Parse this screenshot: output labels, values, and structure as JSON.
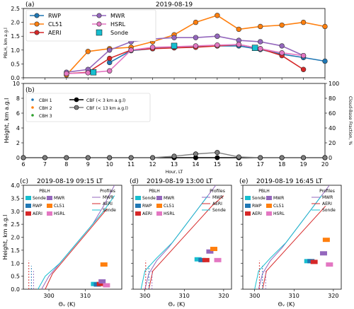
{
  "chart_data": [
    {
      "type": "line",
      "panel_tag": "(a)",
      "title": "2019-08-19",
      "ylabel": "PBLH, km a.g.l",
      "xlim": [
        6,
        20
      ],
      "ylim": [
        0,
        2.5
      ],
      "yticks": [
        0.0,
        0.5,
        1.0,
        1.5,
        2.0,
        2.5
      ],
      "legend_position": "top-left",
      "series": [
        {
          "name": "RWP",
          "color": "#1f77b4",
          "marker": "circle",
          "x": [
            10,
            11,
            12,
            13,
            14,
            15,
            16,
            17,
            18,
            19,
            20
          ],
          "y": [
            0.55,
            0.98,
            1.05,
            1.12,
            1.13,
            1.15,
            1.15,
            1.02,
            0.85,
            0.73,
            0.6
          ]
        },
        {
          "name": "CL51",
          "color": "#ff7f0e",
          "marker": "circle",
          "x": [
            8,
            9,
            10,
            11,
            12,
            13,
            14,
            15,
            16,
            17,
            18,
            19,
            20
          ],
          "y": [
            0.1,
            0.95,
            1.05,
            1.1,
            1.3,
            1.55,
            2.0,
            2.25,
            1.75,
            1.85,
            1.9,
            2.0,
            1.85
          ]
        },
        {
          "name": "AERI",
          "color": "#d62728",
          "marker": "circle",
          "x": [
            8,
            9,
            10,
            11,
            12,
            13,
            14,
            15,
            16,
            17,
            18,
            19
          ],
          "y": [
            0.15,
            0.2,
            0.7,
            1.0,
            1.05,
            1.08,
            1.1,
            1.15,
            1.2,
            1.05,
            0.8,
            0.3
          ]
        },
        {
          "name": "MWR",
          "color": "#9467bd",
          "marker": "circle",
          "x": [
            8,
            9,
            10,
            11,
            12,
            13,
            14,
            15,
            16,
            17,
            18,
            19
          ],
          "y": [
            0.2,
            0.3,
            1.0,
            1.3,
            1.4,
            1.45,
            1.45,
            1.5,
            1.35,
            1.3,
            1.15,
            0.8
          ]
        },
        {
          "name": "HSRL",
          "color": "#e377c2",
          "marker": "circle",
          "x": [
            8,
            9,
            10,
            11,
            12,
            13,
            14,
            15,
            16,
            17,
            18,
            19
          ],
          "y": [
            0.15,
            0.18,
            0.25,
            1.0,
            1.1,
            1.12,
            1.15,
            1.18,
            1.2,
            1.05,
            0.9,
            0.8
          ]
        },
        {
          "name": "Sonde",
          "color": "#17becf",
          "marker": "square",
          "x": [
            9.25,
            13,
            16.75
          ],
          "y": [
            0.2,
            1.15,
            1.08
          ]
        }
      ]
    },
    {
      "type": "line",
      "panel_tag": "(b)",
      "xlabel": "Hour, LT",
      "ylabel": "Height, km a.g.l",
      "y2label": "Cloud-Base Fraction, %",
      "xlim": [
        6,
        20
      ],
      "xticks": [
        6,
        7,
        8,
        9,
        10,
        11,
        12,
        13,
        14,
        15,
        16,
        17,
        18,
        19,
        20
      ],
      "ylim": [
        0,
        10
      ],
      "yticks": [
        0,
        2,
        4,
        6,
        8,
        10
      ],
      "y2lim": [
        0,
        100
      ],
      "y2ticks": [
        0,
        20,
        40,
        60,
        80,
        100
      ],
      "legend_position": "top-left",
      "cbh_legend": [
        {
          "name": "CBH 1",
          "color": "#1f77b4"
        },
        {
          "name": "CBH 2",
          "color": "#ff7f0e"
        },
        {
          "name": "CBH 3",
          "color": "#2ca02c"
        }
      ],
      "series": [
        {
          "name": "CBF (< 3 km a.g.l)",
          "color": "#000000",
          "x": [
            6,
            7,
            8,
            9,
            10,
            11,
            12,
            13,
            14,
            15,
            16,
            17,
            18,
            19,
            20
          ],
          "y2": [
            0,
            0,
            0,
            0,
            0,
            0,
            0,
            0,
            0,
            0,
            0,
            0,
            0,
            0,
            0
          ]
        },
        {
          "name": "CBF (< 13 km a.g.l)",
          "color": "#808080",
          "x": [
            6,
            7,
            8,
            9,
            10,
            11,
            12,
            13,
            14,
            15,
            16,
            17,
            18,
            19,
            20
          ],
          "y2": [
            0,
            0,
            0,
            0,
            0,
            0,
            0,
            2,
            5,
            7,
            1,
            0,
            0,
            0,
            0
          ]
        }
      ]
    },
    {
      "type": "line",
      "panel_tag": "(c)",
      "title": "2019-08-19 09:15 LT",
      "xlabel": "Θᵥ (K)",
      "ylabel": "Height, km a.g.l",
      "xlim": [
        293,
        320
      ],
      "xticks": [
        300,
        310
      ],
      "ylim": [
        0,
        4
      ],
      "yticks": [
        0.0,
        0.5,
        1.0,
        1.5,
        2.0,
        2.5,
        3.0,
        3.5,
        4.0
      ],
      "pblh_heading": "PBLH",
      "profiles_heading": "Profiles",
      "pblh_legend": [
        "Sonde",
        "RWP",
        "AERI",
        "MWR",
        "CL51",
        "HSRL"
      ],
      "profile_legend": [
        "MWR",
        "AERI",
        "Sonde"
      ],
      "profiles": {
        "MWR": {
          "theta": [
            298,
            300,
            303,
            306,
            309,
            312,
            315,
            318
          ],
          "h": [
            0,
            0.5,
            1.0,
            1.5,
            2.0,
            2.5,
            3.2,
            4.0
          ]
        },
        "AERI": {
          "theta": [
            299,
            301,
            304,
            307,
            310,
            313,
            316
          ],
          "h": [
            0,
            0.6,
            1.1,
            1.6,
            2.1,
            2.6,
            3.1
          ]
        },
        "Sonde": {
          "theta": [
            297,
            299,
            303,
            306,
            309,
            312,
            315,
            318
          ],
          "h": [
            0,
            0.5,
            1.0,
            1.5,
            2.0,
            2.5,
            3.0,
            3.6
          ]
        }
      },
      "pblh_markers": [
        {
          "name": "Sonde",
          "theta": 312.5,
          "h": 0.2
        },
        {
          "name": "RWP",
          "theta": 313.3,
          "h": 0.18
        },
        {
          "name": "AERI",
          "theta": 314.1,
          "h": 0.2
        },
        {
          "name": "MWR",
          "theta": 314.6,
          "h": 0.3
        },
        {
          "name": "CL51",
          "theta": 315.1,
          "h": 0.95
        },
        {
          "name": "HSRL",
          "theta": 315.8,
          "h": 0.15
        }
      ],
      "pblh_verticals": [
        294.5,
        295.2,
        295.8
      ]
    },
    {
      "type": "line",
      "panel_tag": "(d)",
      "title": "2019-08-19 13:00 LT",
      "xlabel": "Θᵥ (K)",
      "xlim": [
        297,
        322
      ],
      "xticks": [
        300,
        310,
        320
      ],
      "ylim": [
        0,
        4
      ],
      "pblh_heading": "PBLH",
      "profiles_heading": "Profiles",
      "pblh_legend": [
        "Sonde",
        "RWP",
        "AERI",
        "MWR",
        "CL51",
        "HSRL"
      ],
      "profile_legend": [
        "MWR",
        "AERI",
        "Sonde"
      ],
      "profiles": {
        "MWR": {
          "theta": [
            300,
            301,
            303,
            306,
            309,
            312,
            315,
            318
          ],
          "h": [
            0,
            0.6,
            1.1,
            1.6,
            2.2,
            2.8,
            3.4,
            4.0
          ]
        },
        "AERI": {
          "theta": [
            301,
            302,
            305,
            308,
            311,
            314,
            317,
            320
          ],
          "h": [
            0,
            0.7,
            1.2,
            1.7,
            2.2,
            2.7,
            3.2,
            3.6
          ]
        },
        "Sonde": {
          "theta": [
            299,
            300,
            303,
            307,
            310,
            313,
            316
          ],
          "h": [
            0,
            0.7,
            1.2,
            1.8,
            2.4,
            3.0,
            3.6
          ]
        }
      },
      "pblh_markers": [
        {
          "name": "Sonde",
          "theta": 313.5,
          "h": 1.15
        },
        {
          "name": "RWP",
          "theta": 314.5,
          "h": 1.12
        },
        {
          "name": "AERI",
          "theta": 315.5,
          "h": 1.12
        },
        {
          "name": "MWR",
          "theta": 316.5,
          "h": 1.45
        },
        {
          "name": "CL51",
          "theta": 317.5,
          "h": 1.55
        },
        {
          "name": "HSRL",
          "theta": 318.5,
          "h": 1.12
        }
      ],
      "pblh_verticals": [
        300.2,
        301.0,
        301.8
      ]
    },
    {
      "type": "line",
      "panel_tag": "(e)",
      "title": "2019-08-19 16:45 LT",
      "xlabel": "Θᵥ (K)",
      "xlim": [
        297,
        322
      ],
      "xticks": [
        300,
        310,
        320
      ],
      "ylim": [
        0,
        4
      ],
      "pblh_heading": "PBLH",
      "profiles_heading": "Profiles",
      "pblh_legend": [
        "Sonde",
        "RWP",
        "AERI",
        "MWR",
        "CL51",
        "HSRL"
      ],
      "profile_legend": [
        "MWR",
        "AERI",
        "Sonde"
      ],
      "profiles": {
        "MWR": {
          "theta": [
            301,
            302,
            304,
            307,
            310,
            313,
            316,
            319
          ],
          "h": [
            0,
            0.6,
            1.1,
            1.6,
            2.2,
            2.8,
            3.4,
            4.0
          ]
        },
        "AERI": {
          "theta": [
            302,
            303,
            306,
            309,
            312,
            315,
            318
          ],
          "h": [
            0,
            0.7,
            1.2,
            1.7,
            2.2,
            2.7,
            3.2
          ]
        },
        "Sonde": {
          "theta": [
            300,
            301,
            304,
            308,
            311,
            314,
            317
          ],
          "h": [
            0,
            0.7,
            1.2,
            1.8,
            2.4,
            3.0,
            3.6
          ]
        }
      },
      "pblh_markers": [
        {
          "name": "Sonde",
          "theta": 313.5,
          "h": 1.08
        },
        {
          "name": "RWP",
          "theta": 314.3,
          "h": 1.08
        },
        {
          "name": "AERI",
          "theta": 315.1,
          "h": 1.05
        },
        {
          "name": "MWR",
          "theta": 317.5,
          "h": 1.38
        },
        {
          "name": "CL51",
          "theta": 318.2,
          "h": 1.9
        },
        {
          "name": "HSRL",
          "theta": 319.0,
          "h": 0.95
        }
      ],
      "pblh_verticals": [
        301.2,
        302.0,
        302.8
      ]
    }
  ],
  "colors": {
    "Sonde": "#17becf",
    "RWP": "#1f77b4",
    "AERI": "#d62728",
    "MWR": "#9467bd",
    "CL51": "#ff7f0e",
    "HSRL": "#e377c2"
  }
}
